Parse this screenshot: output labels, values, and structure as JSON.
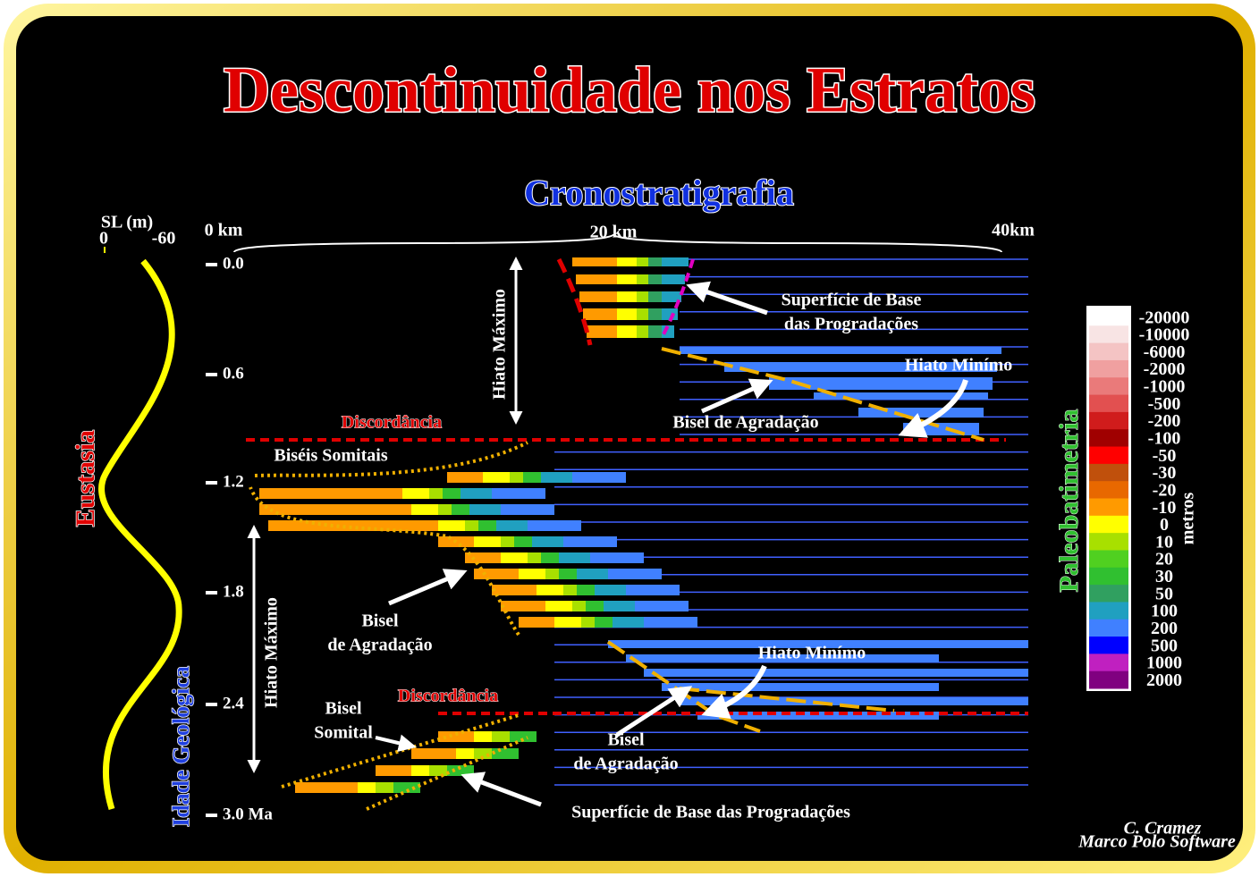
{
  "title": "Descontinuidade nos Estratos",
  "subtitle": "Cronostratigrafia",
  "distance_labels": [
    "0 km",
    "20 km",
    "40km"
  ],
  "sea_level": {
    "label": "SL (m)",
    "ticks": [
      "0",
      "-60"
    ]
  },
  "age_labels": [
    "0.0",
    "0.6",
    "1.2",
    "1.8",
    "2.4",
    "3.0 Ma"
  ],
  "axis_titles": {
    "eustasy": "Eustasia",
    "age": "Idade Geológica"
  },
  "annotations": [
    "Hiato Máximo",
    "Superfície de Base",
    "das Progradações",
    "Hiato Minímo",
    "Bisel de Agradação",
    "Discordância",
    "Biséis Somitais",
    "Bisel",
    "de Agradação",
    "Hiato Máximo",
    "Hiato Minímo",
    "Discordância",
    "Bisel",
    "Somital",
    "Bisel",
    "de Agradação",
    "Superfície de Base das Progradações"
  ],
  "legend": {
    "title": "Paleobatimetria",
    "unit": "metros",
    "items": [
      {
        "label": "-20000",
        "color": "#ffffff"
      },
      {
        "label": "-10000",
        "color": "#f8e4e4"
      },
      {
        "label": "-6000",
        "color": "#f4c4c4"
      },
      {
        "label": "-2000",
        "color": "#f0a0a0"
      },
      {
        "label": "-1000",
        "color": "#ea7a7a"
      },
      {
        "label": "-500",
        "color": "#e25050"
      },
      {
        "label": "-200",
        "color": "#d01c1c"
      },
      {
        "label": "-100",
        "color": "#a00000"
      },
      {
        "label": "-50",
        "color": "#ff0000"
      },
      {
        "label": "-30",
        "color": "#c0500c"
      },
      {
        "label": "-20",
        "color": "#e86800"
      },
      {
        "label": "-10",
        "color": "#ff9a00"
      },
      {
        "label": "0",
        "color": "#ffff00"
      },
      {
        "label": "10",
        "color": "#a8e000"
      },
      {
        "label": "20",
        "color": "#50d020"
      },
      {
        "label": "30",
        "color": "#30c030"
      },
      {
        "label": "50",
        "color": "#30a060"
      },
      {
        "label": "100",
        "color": "#20a0c0"
      },
      {
        "label": "200",
        "color": "#4080ff"
      },
      {
        "label": "500",
        "color": "#0000ff"
      },
      {
        "label": "1000",
        "color": "#c020c0"
      },
      {
        "label": "2000",
        "color": "#800080"
      }
    ]
  },
  "credit": [
    "C. Cramez",
    "Marco Polo Software"
  ]
}
